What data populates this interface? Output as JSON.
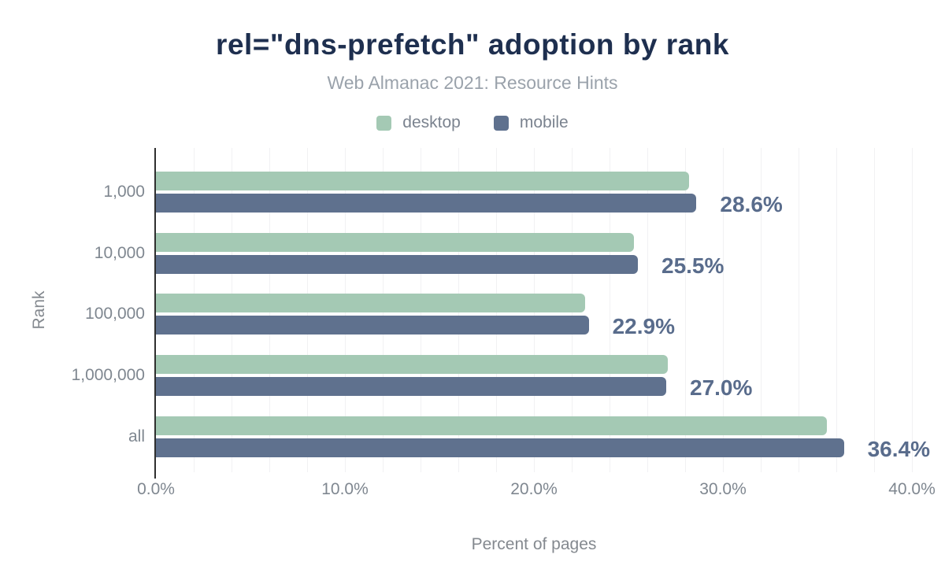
{
  "chart_data": {
    "type": "bar",
    "orientation": "horizontal",
    "title": "rel=\"dns-prefetch\" adoption by rank",
    "subtitle": "Web Almanac 2021: Resource Hints",
    "categories": [
      "1,000",
      "10,000",
      "100,000",
      "1,000,000",
      "all"
    ],
    "series": [
      {
        "name": "desktop",
        "color": "#a4c9b4",
        "values": [
          28.2,
          25.3,
          22.7,
          27.1,
          35.5
        ]
      },
      {
        "name": "mobile",
        "color": "#5f718e",
        "values": [
          28.6,
          25.5,
          22.9,
          27.0,
          36.4
        ]
      }
    ],
    "bar_labels": {
      "labeled_series": "mobile",
      "values": [
        "28.6%",
        "25.5%",
        "22.9%",
        "27.0%",
        "36.4%"
      ]
    },
    "xlabel": "Percent of pages",
    "ylabel": "Rank",
    "x_ticks": [
      "0.0%",
      "10.0%",
      "20.0%",
      "30.0%",
      "40.0%"
    ],
    "xlim": [
      0,
      40
    ],
    "grid": {
      "vertical_minor_step_pct": 2,
      "color": "#f1f1f3"
    },
    "legend": {
      "position": "top",
      "items": [
        "desktop",
        "mobile"
      ]
    },
    "colors": {
      "title": "#1e2f4f",
      "subtitle": "#9aa2ab",
      "axis_text": "#7f8790",
      "value_label": "#596c8c",
      "axis_line": "#2f2f2f"
    }
  }
}
